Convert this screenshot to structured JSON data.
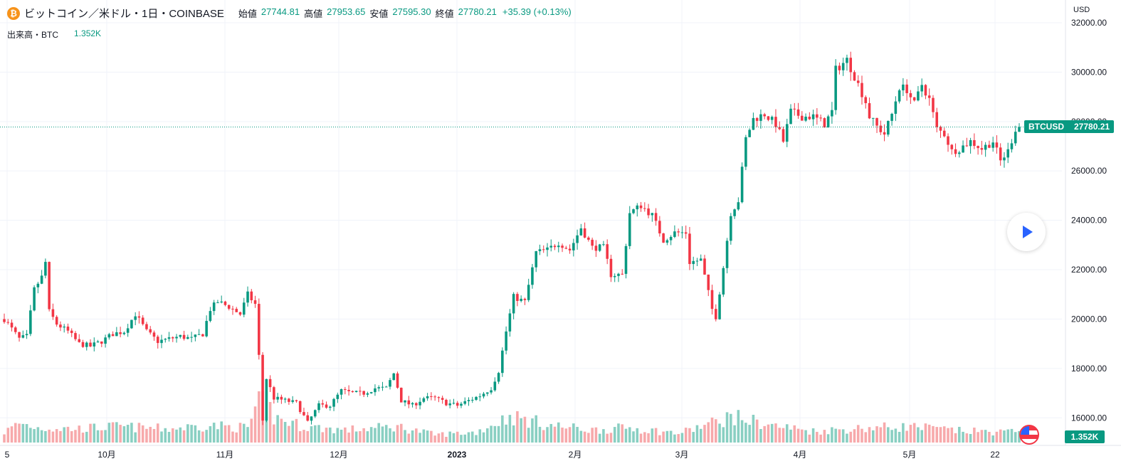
{
  "header": {
    "symbol_title": "ビットコイン／米ドル・1日・COINBASE",
    "ohlc": [
      {
        "label": "始値",
        "value": "27744.81"
      },
      {
        "label": "高値",
        "value": "27953.65"
      },
      {
        "label": "安値",
        "value": "27595.30"
      },
      {
        "label": "終値",
        "value": "27780.21"
      }
    ],
    "change": "+35.39 (+0.13%)"
  },
  "volume_legend": {
    "label": "出来高・BTC",
    "value": "1.352K"
  },
  "axis": {
    "currency": "USD"
  },
  "price_badge": {
    "symbol": "BTCUSD",
    "price": "27780.21"
  },
  "volume_badge": "1.352K",
  "icons": {
    "coin": "bitcoin-icon",
    "play": "play-icon",
    "flag": "us-flag-icon"
  },
  "colors": {
    "up": "#089981",
    "down": "#f23645",
    "up_volume": "#89cfc2",
    "down_volume": "#f7a9ab"
  },
  "chart_data": {
    "type": "candlestick",
    "ylim": [
      15000,
      32000
    ],
    "y_ticks": [
      "16000.00",
      "18000.00",
      "20000.00",
      "22000.00",
      "24000.00",
      "26000.00",
      "28000.00",
      "30000.00",
      "32000.00"
    ],
    "x_ticks": [
      "5",
      "10月",
      "11月",
      "12月",
      "2023",
      "2月",
      "3月",
      "4月",
      "5月",
      "22"
    ],
    "last_price": 27780.21,
    "close_path": [
      [
        "2022-09-01",
        20000
      ],
      [
        "2022-09-03",
        19600
      ],
      [
        "2022-09-05",
        19200
      ],
      [
        "2022-09-07",
        19300
      ],
      [
        "2022-09-09",
        21200
      ],
      [
        "2022-09-11",
        21700
      ],
      [
        "2022-09-12",
        22300
      ],
      [
        "2022-09-13",
        20300
      ],
      [
        "2022-09-15",
        19800
      ],
      [
        "2022-09-18",
        19500
      ],
      [
        "2022-09-21",
        19000
      ],
      [
        "2022-09-24",
        18900
      ],
      [
        "2022-09-27",
        19100
      ],
      [
        "2022-09-30",
        19400
      ],
      [
        "2022-10-03",
        19500
      ],
      [
        "2022-10-06",
        20200
      ],
      [
        "2022-10-09",
        19500
      ],
      [
        "2022-10-12",
        19100
      ],
      [
        "2022-10-15",
        19200
      ],
      [
        "2022-10-18",
        19300
      ],
      [
        "2022-10-21",
        19200
      ],
      [
        "2022-10-24",
        19400
      ],
      [
        "2022-10-26",
        20400
      ],
      [
        "2022-10-28",
        20700
      ],
      [
        "2022-10-31",
        20500
      ],
      [
        "2022-11-03",
        20200
      ],
      [
        "2022-11-05",
        21000
      ],
      [
        "2022-11-07",
        20600
      ],
      [
        "2022-11-08",
        18500
      ],
      [
        "2022-11-09",
        15900
      ],
      [
        "2022-11-10",
        17600
      ],
      [
        "2022-11-12",
        16800
      ],
      [
        "2022-11-15",
        16700
      ],
      [
        "2022-11-18",
        16600
      ],
      [
        "2022-11-21",
        15800
      ],
      [
        "2022-11-24",
        16500
      ],
      [
        "2022-11-27",
        16500
      ],
      [
        "2022-11-30",
        17100
      ],
      [
        "2022-12-03",
        17000
      ],
      [
        "2022-12-06",
        17000
      ],
      [
        "2022-12-09",
        17200
      ],
      [
        "2022-12-12",
        17200
      ],
      [
        "2022-12-14",
        17800
      ],
      [
        "2022-12-16",
        16700
      ],
      [
        "2022-12-19",
        16500
      ],
      [
        "2022-12-22",
        16800
      ],
      [
        "2022-12-25",
        16800
      ],
      [
        "2022-12-28",
        16600
      ],
      [
        "2022-12-31",
        16500
      ],
      [
        "2023-01-03",
        16700
      ],
      [
        "2023-01-06",
        16900
      ],
      [
        "2023-01-09",
        17200
      ],
      [
        "2023-01-11",
        17900
      ],
      [
        "2023-01-13",
        19500
      ],
      [
        "2023-01-15",
        20900
      ],
      [
        "2023-01-18",
        20700
      ],
      [
        "2023-01-21",
        22700
      ],
      [
        "2023-01-24",
        22800
      ],
      [
        "2023-01-27",
        23100
      ],
      [
        "2023-01-30",
        22800
      ],
      [
        "2023-02-02",
        23700
      ],
      [
        "2023-02-05",
        22900
      ],
      [
        "2023-02-08",
        22900
      ],
      [
        "2023-02-10",
        21800
      ],
      [
        "2023-02-13",
        21800
      ],
      [
        "2023-02-15",
        24300
      ],
      [
        "2023-02-18",
        24600
      ],
      [
        "2023-02-21",
        24200
      ],
      [
        "2023-02-24",
        23200
      ],
      [
        "2023-02-27",
        23500
      ],
      [
        "2023-03-02",
        23500
      ],
      [
        "2023-03-03",
        22300
      ],
      [
        "2023-03-06",
        22400
      ],
      [
        "2023-03-09",
        20400
      ],
      [
        "2023-03-10",
        20100
      ],
      [
        "2023-03-12",
        22100
      ],
      [
        "2023-03-14",
        24300
      ],
      [
        "2023-03-16",
        24800
      ],
      [
        "2023-03-18",
        27300
      ],
      [
        "2023-03-20",
        28100
      ],
      [
        "2023-03-23",
        28300
      ],
      [
        "2023-03-26",
        27900
      ],
      [
        "2023-03-28",
        27200
      ],
      [
        "2023-03-30",
        28400
      ],
      [
        "2023-04-02",
        28200
      ],
      [
        "2023-04-05",
        28200
      ],
      [
        "2023-04-08",
        27900
      ],
      [
        "2023-04-10",
        28400
      ],
      [
        "2023-04-11",
        30100
      ],
      [
        "2023-04-14",
        30500
      ],
      [
        "2023-04-17",
        29500
      ],
      [
        "2023-04-19",
        28800
      ],
      [
        "2023-04-20",
        28200
      ],
      [
        "2023-04-22",
        27800
      ],
      [
        "2023-04-24",
        27500
      ],
      [
        "2023-04-26",
        28300
      ],
      [
        "2023-04-28",
        29400
      ],
      [
        "2023-04-30",
        29300
      ],
      [
        "2023-05-02",
        28700
      ],
      [
        "2023-05-04",
        29500
      ],
      [
        "2023-05-06",
        28900
      ],
      [
        "2023-05-08",
        27700
      ],
      [
        "2023-05-10",
        27500
      ],
      [
        "2023-05-12",
        26800
      ],
      [
        "2023-05-14",
        26900
      ],
      [
        "2023-05-17",
        27200
      ],
      [
        "2023-05-20",
        26900
      ],
      [
        "2023-05-23",
        27200
      ],
      [
        "2023-05-25",
        26400
      ],
      [
        "2023-05-27",
        26800
      ],
      [
        "2023-05-29",
        27700
      ],
      [
        "2023-05-30",
        27780.21
      ]
    ],
    "volume_path": [
      [
        "2022-09-01",
        0.9
      ],
      [
        "2022-09-05",
        1.7
      ],
      [
        "2022-09-10",
        1.3
      ],
      [
        "2022-09-20",
        1.2
      ],
      [
        "2022-10-01",
        1.4
      ],
      [
        "2022-10-15",
        1.2
      ],
      [
        "2022-10-25",
        1.5
      ],
      [
        "2022-11-05",
        1.3
      ],
      [
        "2022-11-09",
        4.5
      ],
      [
        "2022-11-12",
        2.2
      ],
      [
        "2022-11-20",
        1.4
      ],
      [
        "2022-12-01",
        1.1
      ],
      [
        "2022-12-15",
        1.4
      ],
      [
        "2022-12-25",
        0.7
      ],
      [
        "2023-01-05",
        0.9
      ],
      [
        "2023-01-14",
        2.3
      ],
      [
        "2023-01-25",
        1.5
      ],
      [
        "2023-02-05",
        1.1
      ],
      [
        "2023-02-15",
        1.3
      ],
      [
        "2023-02-28",
        0.8
      ],
      [
        "2023-03-10",
        1.8
      ],
      [
        "2023-03-14",
        2.3
      ],
      [
        "2023-03-25",
        1.5
      ],
      [
        "2023-04-05",
        1.0
      ],
      [
        "2023-04-20",
        1.3
      ],
      [
        "2023-05-01",
        1.4
      ],
      [
        "2023-05-15",
        1.0
      ],
      [
        "2023-05-30",
        0.9
      ]
    ],
    "volume_ref_max": 4.5
  }
}
